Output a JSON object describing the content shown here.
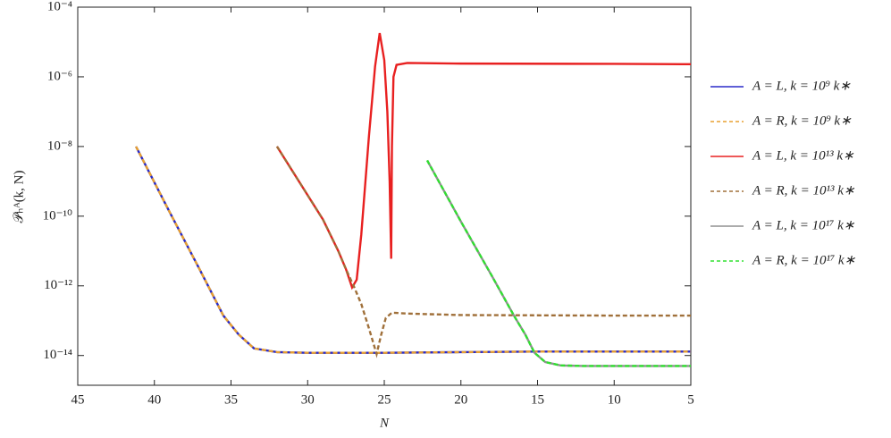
{
  "chart_data": {
    "type": "line",
    "xlabel": "N",
    "ylabel": "𝒫ₕᴬ(k, N)",
    "xlim": [
      45,
      5
    ],
    "xticks": [
      45,
      40,
      35,
      30,
      25,
      20,
      15,
      10,
      5
    ],
    "ylim": [
      1.4e-15,
      0.0001
    ],
    "yscale": "log",
    "yticks": [
      {
        "value": 0.0001,
        "label": "10⁻⁴"
      },
      {
        "value": 1e-06,
        "label": "10⁻⁶"
      },
      {
        "value": 1e-08,
        "label": "10⁻⁸"
      },
      {
        "value": 1e-10,
        "label": "10⁻¹⁰"
      },
      {
        "value": 1e-12,
        "label": "10⁻¹²"
      },
      {
        "value": 1e-14,
        "label": "10⁻¹⁴"
      }
    ],
    "legend": "right",
    "series": [
      {
        "name": "A = L,  k = 10⁹ k∗",
        "color": "#2a2ac8",
        "linestyle": "solid",
        "x": [
          41.2,
          39,
          37,
          35.5,
          34.5,
          33.5,
          32,
          30,
          25,
          20,
          15,
          5
        ],
        "values": [
          1e-08,
          1.3e-10,
          2.7e-12,
          1.4e-13,
          4e-14,
          1.6e-14,
          1.25e-14,
          1.2e-14,
          1.2e-14,
          1.25e-14,
          1.3e-14,
          1.3e-14
        ]
      },
      {
        "name": "A = R,  k = 10⁹ k∗",
        "color": "#e8a030",
        "linestyle": "dashed",
        "x": [
          41.2,
          39,
          37,
          35.5,
          34.5,
          33.5,
          32,
          30,
          25,
          20,
          15,
          5
        ],
        "values": [
          1e-08,
          1.3e-10,
          2.7e-12,
          1.4e-13,
          4e-14,
          1.6e-14,
          1.25e-14,
          1.2e-14,
          1.2e-14,
          1.25e-14,
          1.3e-14,
          1.3e-14
        ]
      },
      {
        "name": "A = L,  k = 10¹³ k∗",
        "color": "#e82020",
        "linestyle": "solid",
        "x": [
          32,
          31,
          30,
          29,
          28,
          27.5,
          27.1,
          26.8,
          26.5,
          26,
          25.6,
          25.3,
          25.0,
          24.8,
          24.65,
          24.55,
          24.5,
          24.4,
          24.2,
          23.5,
          20,
          10,
          5
        ],
        "values": [
          1e-08,
          2e-09,
          4e-10,
          8e-11,
          1e-11,
          3e-12,
          9e-13,
          1.5e-12,
          3e-11,
          2e-08,
          2e-06,
          1.8e-05,
          3e-06,
          1e-07,
          1e-09,
          6e-12,
          1e-08,
          1e-06,
          2.2e-06,
          2.5e-06,
          2.4e-06,
          2.35e-06,
          2.3e-06
        ]
      },
      {
        "name": "A = R,  k = 10¹³ k∗",
        "color": "#a0703a",
        "linestyle": "dashed",
        "x": [
          32,
          31,
          30,
          29,
          28,
          27.5,
          27,
          26.5,
          26,
          25.5,
          25.2,
          24.9,
          24.5,
          23.5,
          20,
          10,
          5
        ],
        "values": [
          1e-08,
          2e-09,
          4e-10,
          8e-11,
          1e-11,
          3e-12,
          1e-12,
          3e-13,
          6e-14,
          1.1e-14,
          4e-14,
          1.2e-13,
          1.7e-13,
          1.6e-13,
          1.45e-13,
          1.4e-13,
          1.4e-13
        ]
      },
      {
        "name": "A = L,  k = 10¹⁷ k∗",
        "color": "#909090",
        "linestyle": "solid",
        "x": [
          22.2,
          20,
          18,
          16.5,
          15.8,
          15.2,
          14.5,
          13.5,
          12,
          5
        ],
        "values": [
          4e-09,
          7e-11,
          2e-12,
          1.3e-13,
          4e-14,
          1.2e-14,
          6.5e-15,
          5.2e-15,
          5e-15,
          5e-15
        ]
      },
      {
        "name": "A = R,  k = 10¹⁷ k∗",
        "color": "#30e030",
        "linestyle": "dashed",
        "x": [
          22.2,
          20,
          18,
          16.5,
          15.8,
          15.2,
          14.5,
          13.5,
          12,
          5
        ],
        "values": [
          4e-09,
          7e-11,
          2e-12,
          1.3e-13,
          4e-14,
          1.2e-14,
          6.5e-15,
          5.2e-15,
          5e-15,
          5e-15
        ]
      }
    ]
  }
}
